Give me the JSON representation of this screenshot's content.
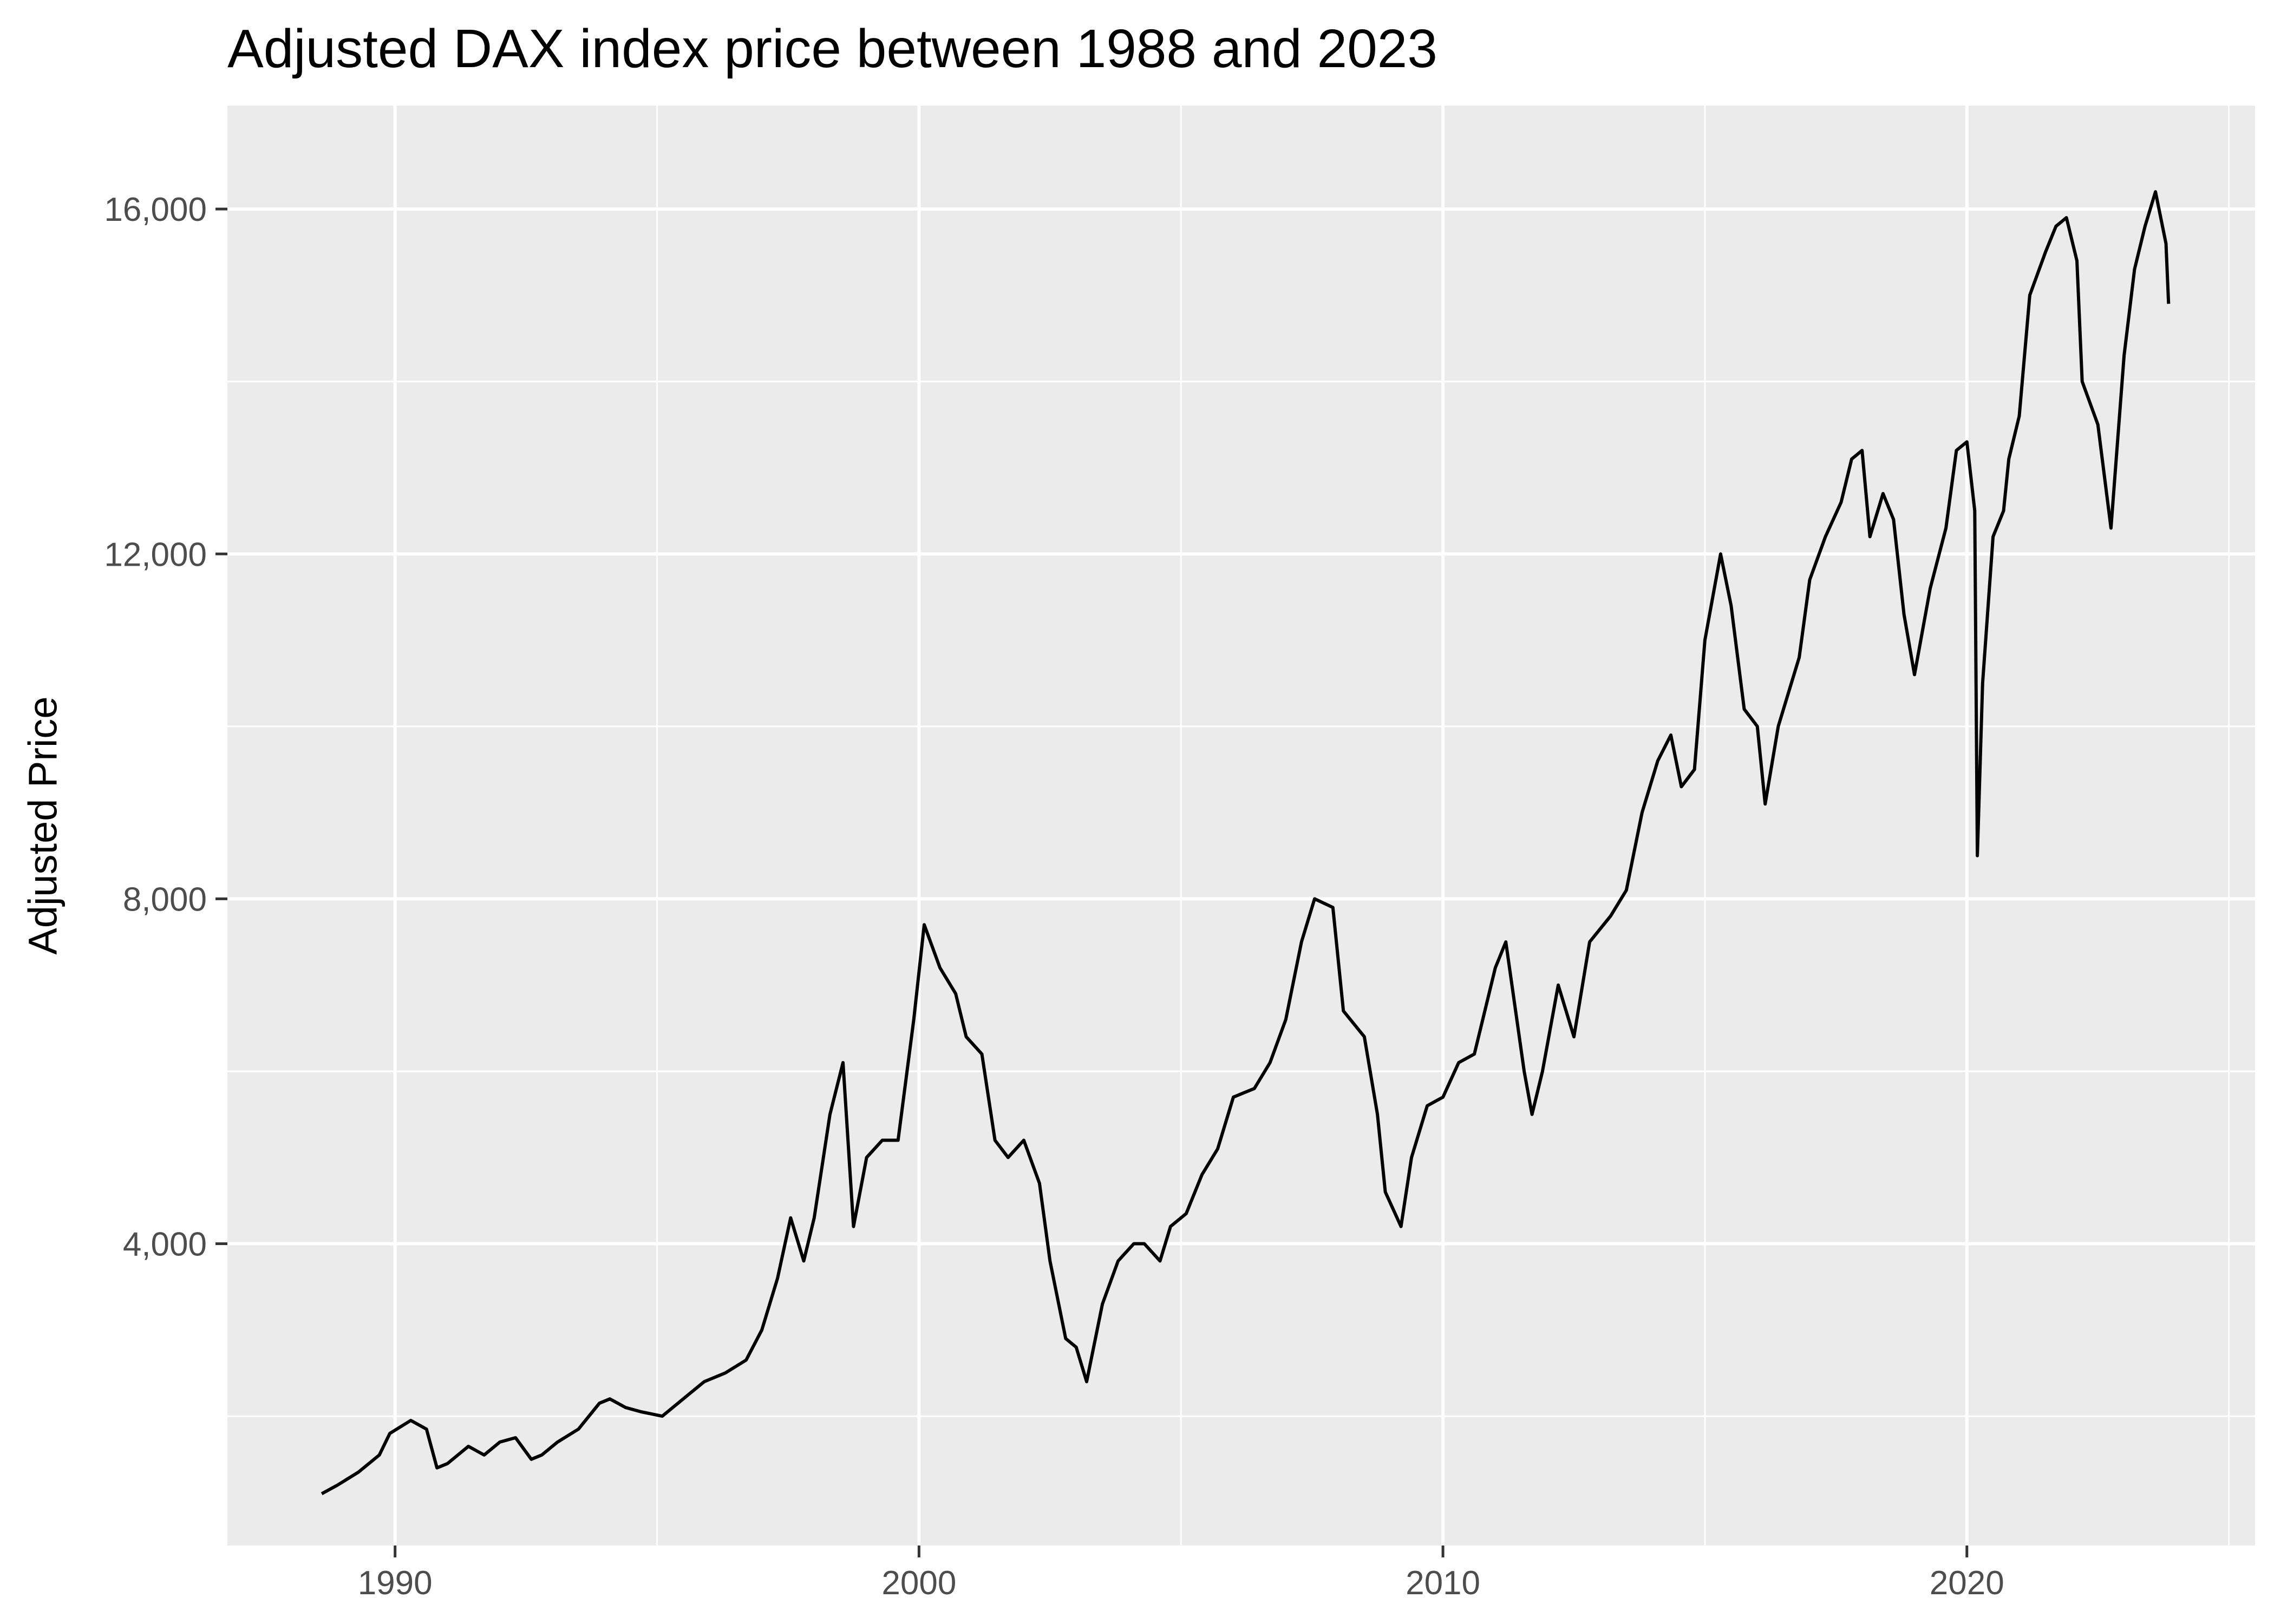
{
  "chart_data": {
    "type": "line",
    "title": "Adjusted DAX index price between 1988 and 2023",
    "xlabel": "",
    "ylabel": "Adjusted Price",
    "xlim": [
      1986.8,
      2025.5
    ],
    "ylim": [
      500,
      17200
    ],
    "x_ticks": [
      1990,
      2000,
      2010,
      2020
    ],
    "x_tick_labels": [
      "1990",
      "2000",
      "2010",
      "2020"
    ],
    "y_ticks": [
      4000,
      8000,
      12000,
      16000
    ],
    "y_tick_labels": [
      "4,000",
      "8,000",
      "12,000",
      "16,000"
    ],
    "grid": true,
    "legend": "none",
    "background_color": "#ebebeb",
    "grid_color": "#ffffff",
    "line_color": "#000000",
    "series": [
      {
        "x": [
          1988.6,
          1988.9,
          1989.3,
          1989.7,
          1989.9,
          1990.3,
          1990.6,
          1990.8,
          1991.0,
          1991.4,
          1991.7,
          1992.0,
          1992.3,
          1992.6,
          1992.8,
          1993.1,
          1993.5,
          1993.9,
          1994.1,
          1994.4,
          1994.7,
          1995.1,
          1995.5,
          1995.9,
          1996.3,
          1996.7,
          1997.0,
          1997.3,
          1997.55,
          1997.8,
          1998.0,
          1998.3,
          1998.55,
          1998.75,
          1999.0,
          1999.3,
          1999.6,
          1999.9,
          2000.1,
          2000.4,
          2000.7,
          2000.9,
          2001.2,
          2001.45,
          2001.7,
          2002.0,
          2002.3,
          2002.5,
          2002.8,
          2003.0,
          2003.2,
          2003.5,
          2003.8,
          2004.1,
          2004.3,
          2004.6,
          2004.8,
          2005.1,
          2005.4,
          2005.7,
          2006.0,
          2006.4,
          2006.7,
          2007.0,
          2007.3,
          2007.55,
          2007.9,
          2008.1,
          2008.5,
          2008.75,
          2008.9,
          2009.2,
          2009.4,
          2009.7,
          2010.0,
          2010.3,
          2010.6,
          2011.0,
          2011.2,
          2011.55,
          2011.7,
          2011.9,
          2012.2,
          2012.5,
          2012.8,
          2013.2,
          2013.5,
          2013.8,
          2014.1,
          2014.35,
          2014.55,
          2014.8,
          2015.0,
          2015.3,
          2015.5,
          2015.75,
          2016.0,
          2016.15,
          2016.4,
          2016.6,
          2016.8,
          2017.0,
          2017.3,
          2017.6,
          2017.8,
          2018.0,
          2018.15,
          2018.4,
          2018.6,
          2018.8,
          2019.0,
          2019.3,
          2019.6,
          2019.8,
          2020.0,
          2020.15,
          2020.2,
          2020.3,
          2020.5,
          2020.7,
          2020.8,
          2021.0,
          2021.2,
          2021.5,
          2021.7,
          2021.9,
          2022.1,
          2022.2,
          2022.5,
          2022.75,
          2023.0,
          2023.2,
          2023.4,
          2023.6,
          2023.8,
          2023.85
        ],
        "y": [
          1100,
          1200,
          1350,
          1550,
          1800,
          1950,
          1850,
          1400,
          1450,
          1650,
          1550,
          1700,
          1750,
          1500,
          1550,
          1700,
          1850,
          2150,
          2200,
          2100,
          2050,
          2000,
          2200,
          2400,
          2500,
          2650,
          3000,
          3600,
          4300,
          3800,
          4300,
          5500,
          6100,
          4200,
          5000,
          5200,
          5200,
          6600,
          7700,
          7200,
          6900,
          6400,
          6200,
          5200,
          5000,
          5200,
          4700,
          3800,
          2900,
          2800,
          2400,
          3300,
          3800,
          4000,
          4000,
          3800,
          4200,
          4350,
          4800,
          5100,
          5700,
          5800,
          6100,
          6600,
          7500,
          8000,
          7900,
          6700,
          6400,
          5500,
          4600,
          4200,
          5000,
          5600,
          5700,
          6100,
          6200,
          7200,
          7500,
          6000,
          5500,
          6000,
          7000,
          6400,
          7500,
          7800,
          8100,
          9000,
          9600,
          9900,
          9300,
          9500,
          11000,
          12000,
          11400,
          10200,
          10000,
          9100,
          10000,
          10400,
          10800,
          11700,
          12200,
          12600,
          13100,
          13200,
          12200,
          12700,
          12400,
          11300,
          10600,
          11600,
          12300,
          13200,
          13300,
          12500,
          8500,
          10500,
          12200,
          12500,
          13100,
          13600,
          15000,
          15500,
          15800,
          15900,
          15400,
          14000,
          13500,
          12300,
          14300,
          15300,
          15800,
          16200,
          15600,
          14900
        ]
      }
    ]
  }
}
